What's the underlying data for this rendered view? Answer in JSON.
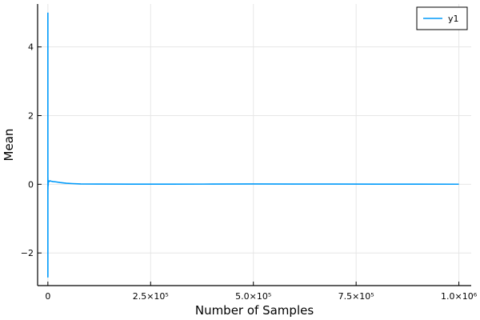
{
  "chart_data": {
    "type": "line",
    "title": "",
    "xlabel": "Number of Samples",
    "ylabel": "Mean",
    "xlim": [
      -25000,
      1030000
    ],
    "ylim": [
      -2.95,
      5.25
    ],
    "grid": true,
    "legend_position": "top-right",
    "xticks": [
      {
        "value": 0,
        "label": "0"
      },
      {
        "value": 250000,
        "label": "2.5×10⁵"
      },
      {
        "value": 500000,
        "label": "5.0×10⁵"
      },
      {
        "value": 750000,
        "label": "7.5×10⁵"
      },
      {
        "value": 1000000,
        "label": "1.0×10⁶"
      }
    ],
    "yticks": [
      {
        "value": -2,
        "label": "−2"
      },
      {
        "value": 0,
        "label": "0"
      },
      {
        "value": 2,
        "label": "2"
      },
      {
        "value": 4,
        "label": "4"
      }
    ],
    "series": [
      {
        "name": "y1",
        "color": "#009AFA",
        "x": [
          1,
          2,
          3,
          5,
          8,
          12,
          20,
          40,
          80,
          150,
          300,
          600,
          1000,
          2000,
          3000,
          5000,
          8000,
          12000,
          20000,
          30000,
          45000,
          60000,
          80000,
          120000,
          200000,
          300000,
          400000,
          500000,
          600000,
          700000,
          800000,
          900000,
          1000000
        ],
        "y": [
          5.0,
          -2.7,
          1.2,
          -1.5,
          0.8,
          -0.6,
          0.4,
          -0.3,
          0.2,
          -0.15,
          0.12,
          -0.05,
          0.05,
          0.1,
          0.08,
          0.1,
          0.09,
          0.08,
          0.07,
          0.05,
          0.03,
          0.02,
          0.01,
          0.008,
          0.005,
          0.004,
          0.006,
          0.01,
          0.008,
          0.006,
          0.005,
          0.004,
          0.003
        ]
      }
    ]
  }
}
